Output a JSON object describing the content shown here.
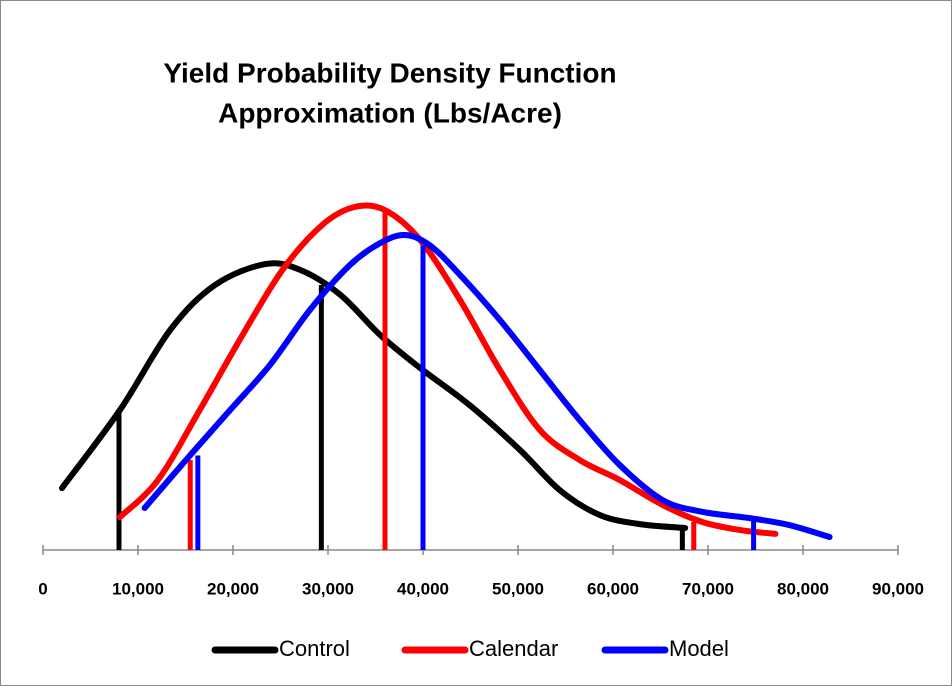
{
  "chart_data": {
    "type": "line",
    "title": [
      "Yield Probability Density Function",
      "Approximation (Lbs/Acre)"
    ],
    "xlim": [
      0,
      90000
    ],
    "ylim": [
      0,
      100
    ],
    "xticks": [
      0,
      {
        "value": 10000,
        "label": "10,000"
      },
      {
        "value": 20000,
        "label": "20,000"
      },
      {
        "value": 30000,
        "label": "30,000"
      },
      {
        "value": 40000,
        "label": "40,000"
      },
      {
        "value": 50000,
        "label": "50,000"
      },
      {
        "value": 60000,
        "label": "60,000"
      },
      {
        "value": 70000,
        "label": "70,000"
      },
      {
        "value": 80000,
        "label": "80,000"
      },
      {
        "value": 90000,
        "label": "90,000"
      }
    ],
    "legend": "bottom",
    "series": [
      {
        "name": "Control",
        "color": "#000000",
        "x": [
          2000,
          8100,
          13400,
          18100,
          23400,
          27100,
          31300,
          35500,
          39700,
          44900,
          50200,
          54400,
          58600,
          62800,
          67600
        ],
        "values": [
          17.7,
          40,
          62.9,
          75.7,
          81.7,
          80,
          72.9,
          61.4,
          52,
          41.4,
          28.6,
          17.1,
          10,
          7.4,
          6.3
        ],
        "markers": {
          "x": [
            8000,
            29300,
            67300
          ],
          "values": [
            40,
            75.7,
            6.3
          ]
        }
      },
      {
        "name": "Calendar",
        "color": "#ff0000",
        "x": [
          8100,
          12100,
          16500,
          20700,
          25200,
          29400,
          32800,
          36000,
          39700,
          43900,
          48100,
          52300,
          56500,
          60700,
          65200,
          69400,
          73400,
          77100
        ],
        "values": [
          9.4,
          20,
          40,
          60,
          80,
          92.9,
          98,
          97.1,
          88.6,
          71.4,
          51.4,
          34.3,
          25.7,
          20,
          12.9,
          8,
          5.7,
          4.6
        ],
        "markers": {
          "x": [
            15500,
            36000,
            68500
          ],
          "values": [
            25.7,
            97,
            8
          ]
        }
      },
      {
        "name": "Model",
        "color": "#0000ff",
        "x": [
          10700,
          15500,
          19700,
          23900,
          28100,
          32300,
          35500,
          38100,
          40700,
          43900,
          48100,
          52300,
          56500,
          60700,
          65200,
          69400,
          74400,
          78600,
          82800
        ],
        "values": [
          12,
          27.1,
          40,
          52.9,
          68.6,
          81.4,
          87.7,
          90,
          87.1,
          78.6,
          65.7,
          51.4,
          37.1,
          24.3,
          14.3,
          10.9,
          9.1,
          7.1,
          3.7
        ],
        "markers": {
          "x": [
            16300,
            40000,
            74800
          ],
          "values": [
            27,
            87,
            9.1
          ]
        }
      }
    ]
  }
}
